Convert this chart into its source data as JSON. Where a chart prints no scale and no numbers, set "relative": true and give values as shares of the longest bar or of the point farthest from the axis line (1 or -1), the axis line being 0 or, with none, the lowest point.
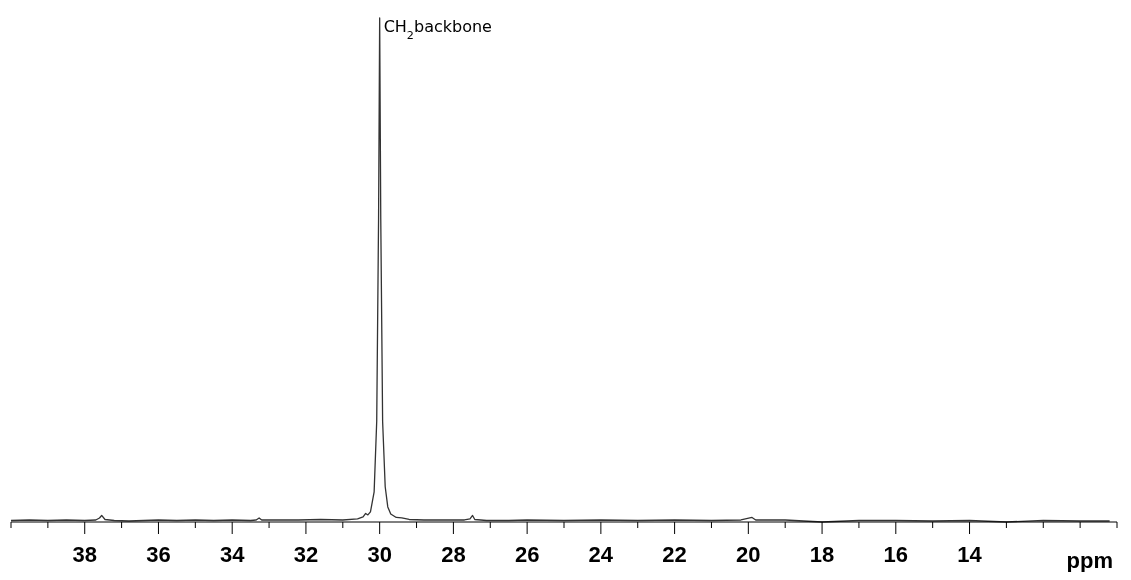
{
  "chart_data": {
    "type": "line",
    "relative": true,
    "xlabel": "ppm",
    "xlim": [
      40,
      10
    ],
    "xticks": [
      {
        "value": 40,
        "label": null
      },
      {
        "value": 39,
        "label": null
      },
      38,
      {
        "value": 37,
        "label": null
      },
      36,
      {
        "value": 35,
        "label": null
      },
      34,
      {
        "value": 33,
        "label": null
      },
      32,
      {
        "value": 31,
        "label": null
      },
      30,
      {
        "value": 29,
        "label": null
      },
      28,
      {
        "value": 27,
        "label": null
      },
      26,
      {
        "value": 25,
        "label": null
      },
      24,
      {
        "value": 23,
        "label": null
      },
      22,
      {
        "value": 21,
        "label": null
      },
      20,
      {
        "value": 19,
        "label": null
      },
      18,
      {
        "value": 17,
        "label": null
      },
      16,
      {
        "value": 15,
        "label": null
      },
      14,
      {
        "value": 13,
        "label": null
      },
      {
        "value": 12,
        "label": null
      },
      {
        "value": 11,
        "label": null
      },
      {
        "value": 10,
        "label": null
      }
    ],
    "x": [
      40,
      39.5,
      39,
      38.5,
      38,
      37.7,
      37.6,
      37.54,
      37.45,
      37.2,
      36.8,
      36,
      35.5,
      35,
      34.5,
      34,
      33.5,
      33.35,
      33.27,
      33.2,
      32.8,
      32.2,
      31.6,
      31,
      30.6,
      30.45,
      30.38,
      30.32,
      30.25,
      30.15,
      30.08,
      30.03,
      30.0,
      29.97,
      29.92,
      29.85,
      29.78,
      29.7,
      29.55,
      29.4,
      29.2,
      28.8,
      28.2,
      27.7,
      27.55,
      27.48,
      27.42,
      27.1,
      26.5,
      26,
      25,
      24,
      23,
      22,
      21,
      20.2,
      19.9,
      19.8,
      19,
      18,
      17,
      16,
      15,
      14,
      13,
      12,
      11,
      10.2
    ],
    "values": [
      0.003,
      0.004,
      0.003,
      0.004,
      0.003,
      0.004,
      0.008,
      0.013,
      0.005,
      0.003,
      0.002,
      0.004,
      0.003,
      0.004,
      0.003,
      0.004,
      0.003,
      0.004,
      0.008,
      0.004,
      0.004,
      0.004,
      0.005,
      0.004,
      0.006,
      0.01,
      0.017,
      0.014,
      0.02,
      0.06,
      0.2,
      0.6,
      1,
      0.6,
      0.2,
      0.07,
      0.03,
      0.016,
      0.009,
      0.008,
      0.005,
      0.004,
      0.004,
      0.004,
      0.006,
      0.013,
      0.005,
      0.003,
      0.003,
      0.004,
      0.003,
      0.004,
      0.003,
      0.004,
      0.003,
      0.004,
      0.009,
      0.004,
      0.004,
      0,
      0.003,
      0.003,
      0.002,
      0.003,
      0,
      0.003,
      0.002,
      0.002
    ],
    "color": "#333333",
    "line_style": "solid",
    "marker": "none",
    "annotations": [
      {
        "text": "CH$_{2}$backbone",
        "x": 30,
        "y": 1
      }
    ]
  }
}
